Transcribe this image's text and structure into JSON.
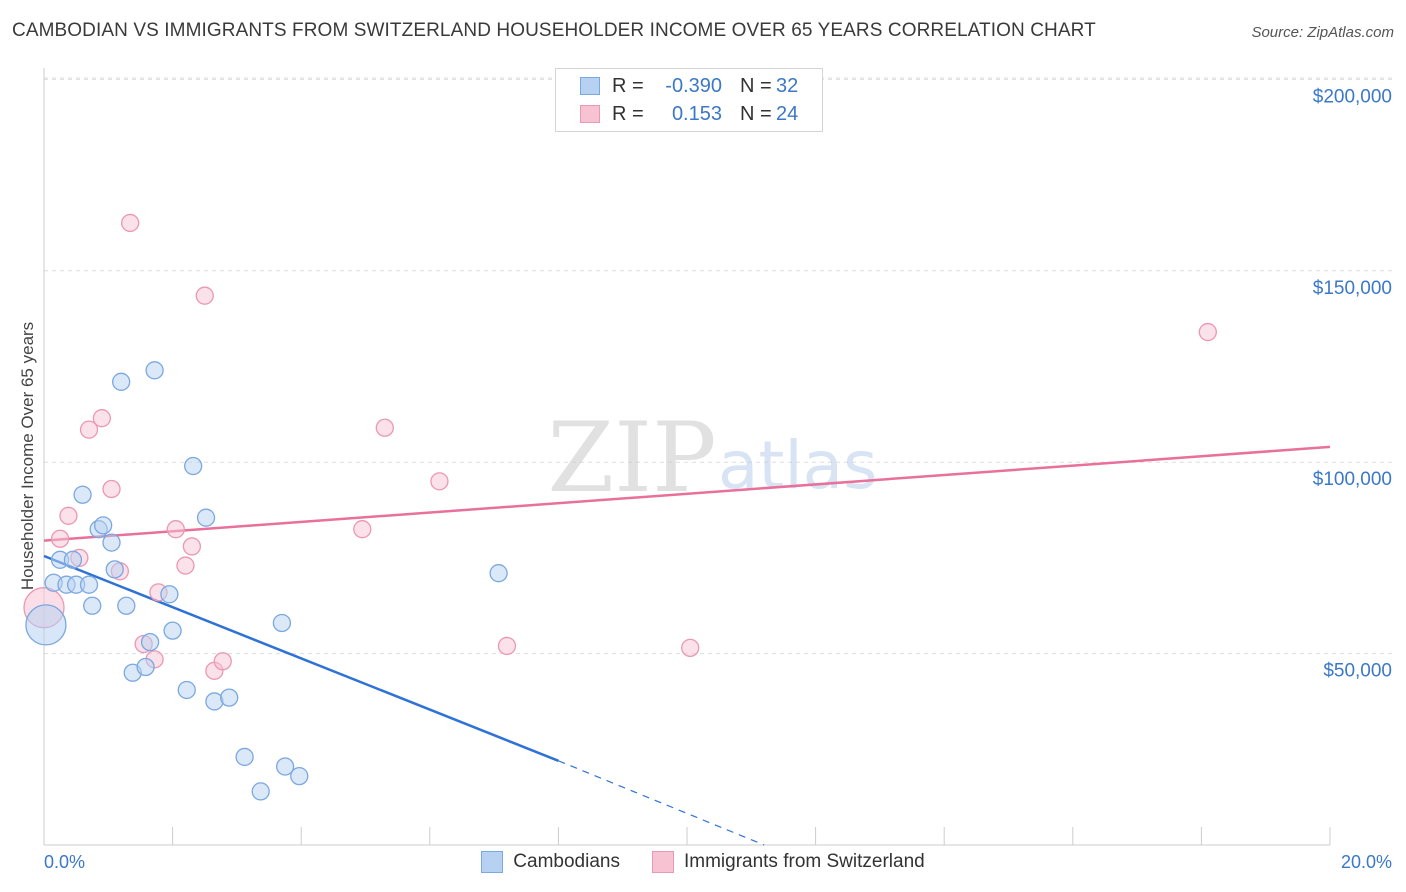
{
  "title": "CAMBODIAN VS IMMIGRANTS FROM SWITZERLAND HOUSEHOLDER INCOME OVER 65 YEARS CORRELATION CHART",
  "source": "Source: ZipAtlas.com",
  "watermark": {
    "zip": "ZIP",
    "atlas": "atlas"
  },
  "colors": {
    "blue_fill": "#b7d1f2",
    "blue_stroke": "#7aa8e0",
    "blue_line": "#2f72d6",
    "pink_fill": "#f7c3d3",
    "pink_stroke": "#ec97b3",
    "pink_line": "#e8709a",
    "tick_text": "#3b78c8",
    "grid": "#dddddd"
  },
  "legend": {
    "rows": [
      {
        "r_label": "R =",
        "r_value": "-0.390",
        "n_label": "N =",
        "n_value": "32"
      },
      {
        "r_label": "R =",
        "r_value": "0.153",
        "n_label": "N =",
        "n_value": "24"
      }
    ]
  },
  "bottom_legend": [
    "Cambodians",
    "Immigrants from Switzerland"
  ],
  "chart_data": {
    "type": "scatter",
    "title": "CAMBODIAN VS IMMIGRANTS FROM SWITZERLAND HOUSEHOLDER INCOME OVER 65 YEARS CORRELATION CHART",
    "xlabel": "",
    "ylabel": "Householder Income Over 65 years",
    "xlim": [
      0,
      20
    ],
    "ylim": [
      0,
      205000
    ],
    "x_tick_labels": {
      "left": "0.0%",
      "right": "20.0%"
    },
    "y_ticks": [
      {
        "value": 50000,
        "label": "$50,000"
      },
      {
        "value": 100000,
        "label": "$100,000"
      },
      {
        "value": 150000,
        "label": "$150,000"
      },
      {
        "value": 200000,
        "label": "$200,000"
      }
    ],
    "x_minor_ticks": [
      2,
      4,
      6,
      8,
      10,
      12,
      14,
      16,
      18,
      20
    ],
    "series": [
      {
        "name": "Cambodians",
        "color": "blue",
        "r": -0.39,
        "n": 32,
        "trend": {
          "x_solid": [
            0,
            8.0
          ],
          "y_solid": [
            75500,
            22000
          ],
          "x_dash": [
            8.0,
            11.2
          ],
          "y_dash": [
            22000,
            0
          ]
        },
        "points": [
          {
            "x": 0.03,
            "y": 57500,
            "big": true
          },
          {
            "x": 0.15,
            "y": 68500
          },
          {
            "x": 0.25,
            "y": 74500
          },
          {
            "x": 0.35,
            "y": 68000
          },
          {
            "x": 0.45,
            "y": 74500
          },
          {
            "x": 0.5,
            "y": 68000
          },
          {
            "x": 0.6,
            "y": 91500
          },
          {
            "x": 0.7,
            "y": 68000
          },
          {
            "x": 0.75,
            "y": 62500
          },
          {
            "x": 0.85,
            "y": 82500
          },
          {
            "x": 0.92,
            "y": 83500
          },
          {
            "x": 1.05,
            "y": 79000
          },
          {
            "x": 1.1,
            "y": 72000
          },
          {
            "x": 1.2,
            "y": 121000
          },
          {
            "x": 1.28,
            "y": 62500
          },
          {
            "x": 1.38,
            "y": 45000
          },
          {
            "x": 1.58,
            "y": 46500
          },
          {
            "x": 1.65,
            "y": 53000
          },
          {
            "x": 1.72,
            "y": 124000
          },
          {
            "x": 1.95,
            "y": 65500
          },
          {
            "x": 2.0,
            "y": 56000
          },
          {
            "x": 2.22,
            "y": 40500
          },
          {
            "x": 2.32,
            "y": 99000
          },
          {
            "x": 2.52,
            "y": 85500
          },
          {
            "x": 2.65,
            "y": 37500
          },
          {
            "x": 2.88,
            "y": 38500
          },
          {
            "x": 3.12,
            "y": 23000
          },
          {
            "x": 3.37,
            "y": 14000
          },
          {
            "x": 3.7,
            "y": 58000
          },
          {
            "x": 3.75,
            "y": 20500
          },
          {
            "x": 3.97,
            "y": 18000
          },
          {
            "x": 7.07,
            "y": 71000
          }
        ]
      },
      {
        "name": "Immigrants from Switzerland",
        "color": "pink",
        "r": 0.153,
        "n": 24,
        "trend": {
          "x": [
            0,
            20
          ],
          "y": [
            79500,
            104000
          ]
        },
        "points": [
          {
            "x": 0.0,
            "y": 62000,
            "big": true
          },
          {
            "x": 0.25,
            "y": 80000
          },
          {
            "x": 0.38,
            "y": 86000
          },
          {
            "x": 0.55,
            "y": 75000
          },
          {
            "x": 0.7,
            "y": 108500
          },
          {
            "x": 0.9,
            "y": 111500
          },
          {
            "x": 1.05,
            "y": 93000
          },
          {
            "x": 1.18,
            "y": 71500
          },
          {
            "x": 1.34,
            "y": 162500
          },
          {
            "x": 1.55,
            "y": 52500
          },
          {
            "x": 1.72,
            "y": 48500
          },
          {
            "x": 1.78,
            "y": 66000
          },
          {
            "x": 2.05,
            "y": 82500
          },
          {
            "x": 2.2,
            "y": 73000
          },
          {
            "x": 2.3,
            "y": 78000
          },
          {
            "x": 2.5,
            "y": 143500
          },
          {
            "x": 2.65,
            "y": 45500
          },
          {
            "x": 2.78,
            "y": 48000
          },
          {
            "x": 4.95,
            "y": 82500
          },
          {
            "x": 5.3,
            "y": 109000
          },
          {
            "x": 6.15,
            "y": 95000
          },
          {
            "x": 7.2,
            "y": 52000
          },
          {
            "x": 10.05,
            "y": 51500
          },
          {
            "x": 18.1,
            "y": 134000
          }
        ]
      }
    ]
  }
}
